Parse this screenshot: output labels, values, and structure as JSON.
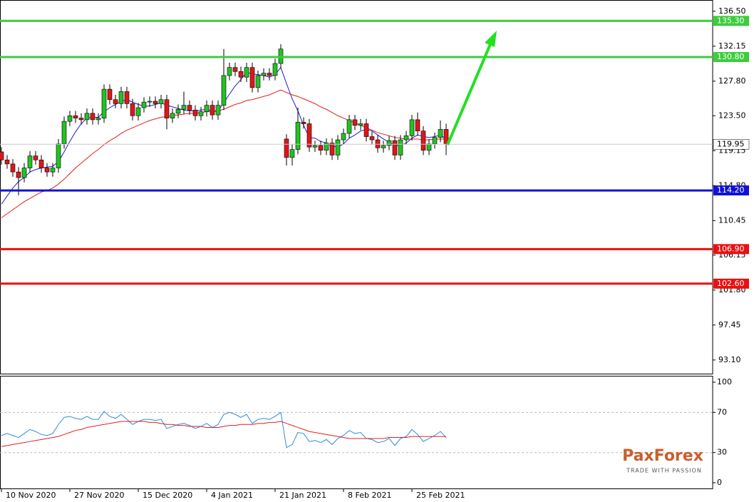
{
  "chart_data": [
    {
      "type": "candlestick",
      "categories": [
        "10 Nov 2020",
        null,
        null,
        null,
        null,
        null,
        null,
        null,
        null,
        null,
        null,
        null,
        "27 Nov 2020",
        null,
        null,
        null,
        null,
        null,
        null,
        null,
        null,
        null,
        null,
        null,
        "15 Dec 2020",
        null,
        null,
        null,
        null,
        null,
        null,
        null,
        null,
        null,
        null,
        null,
        "4 Jan 2021",
        null,
        null,
        null,
        null,
        null,
        null,
        null,
        null,
        null,
        null,
        null,
        "21 Jan 2021",
        null,
        null,
        null,
        null,
        null,
        null,
        null,
        null,
        null,
        null,
        null,
        "8 Feb 2021",
        null,
        null,
        null,
        null,
        null,
        null,
        null,
        null,
        null,
        null,
        null,
        "25 Feb 2021",
        null,
        null,
        null,
        null,
        null,
        null
      ],
      "open": [
        119,
        118,
        117.5,
        116.5,
        115.8,
        117,
        118.5,
        118,
        117,
        116.5,
        117,
        120,
        122.8,
        123.5,
        123.2,
        123,
        123.8,
        123,
        123.2,
        126.8,
        125.5,
        125,
        126.5,
        125,
        123.5,
        124.5,
        125.2,
        125.3,
        125,
        125.5,
        123.2,
        123.8,
        124.3,
        124.8,
        124.2,
        123.5,
        124,
        124.8,
        123.6,
        124.8,
        128.5,
        129.5,
        129,
        128.3,
        129.5,
        127,
        128.5,
        128.8,
        128.5,
        130,
        120.6,
        118.3,
        119.3,
        122.7,
        122.5,
        119.6,
        119.8,
        119.2,
        120.1,
        118.6,
        120.5,
        121.3,
        123,
        122.3,
        122.5,
        120.9,
        120.5,
        119.5,
        119.8,
        120.4,
        118.6,
        120.5,
        121,
        123,
        121.6,
        119.2,
        120,
        120.8,
        121.8
      ],
      "high": [
        119.6,
        118.6,
        118.1,
        117.1,
        117.6,
        119.1,
        119.1,
        118.6,
        117.6,
        117.6,
        120.6,
        123.4,
        124.1,
        124.1,
        123.8,
        124.4,
        124.4,
        123.8,
        127.4,
        127.4,
        126.1,
        127.1,
        127.1,
        125.6,
        125.1,
        125.8,
        125.9,
        125.9,
        126.1,
        126.1,
        124.4,
        124.9,
        126.5,
        125.4,
        124.8,
        124.6,
        125.4,
        125.4,
        125.4,
        131.8,
        130.1,
        130.1,
        129.6,
        130.1,
        130.1,
        129.1,
        129.4,
        129.4,
        130.6,
        132.4,
        121.2,
        119.9,
        124.5,
        123.3,
        123.1,
        120.4,
        120.4,
        120.7,
        120.7,
        121.1,
        121.9,
        123.6,
        123.6,
        123.1,
        123.1,
        121.5,
        121.1,
        120.4,
        121,
        121,
        121.1,
        121.6,
        123.6,
        123.9,
        122.2,
        120.6,
        121.4,
        122.9,
        122.5
      ],
      "low": [
        117.4,
        116.9,
        115.9,
        113.6,
        115.2,
        116.4,
        117.4,
        116.4,
        115.9,
        115.9,
        116.4,
        119.4,
        122.2,
        122.6,
        122.4,
        122.4,
        122.4,
        122.4,
        122.6,
        124.9,
        124.4,
        124.4,
        124.4,
        122.9,
        122.9,
        123.9,
        124.6,
        124.4,
        124.4,
        121.8,
        122.6,
        123.2,
        123.7,
        123.6,
        122.9,
        122.9,
        123.4,
        123,
        123,
        124.2,
        127.9,
        128.4,
        127.7,
        127.7,
        126.4,
        126.4,
        127.9,
        127.9,
        127.9,
        129.4,
        117.3,
        117.3,
        118.7,
        121.9,
        119,
        119,
        118.6,
        118.6,
        118,
        118,
        119.9,
        120.7,
        121.7,
        121.7,
        120.3,
        119.9,
        118.9,
        118.9,
        119.2,
        118,
        118,
        119.9,
        120.4,
        121,
        118.6,
        118.6,
        119.4,
        120.2,
        118.6
      ],
      "close": [
        118,
        117.5,
        116.5,
        115.8,
        117,
        118.5,
        118,
        117,
        116.5,
        117,
        120,
        122.8,
        123.5,
        123.2,
        123,
        123.8,
        123,
        123.2,
        126.8,
        125.5,
        125,
        126.5,
        125,
        123.5,
        124.5,
        125.2,
        125.3,
        125,
        125.5,
        123.2,
        123.8,
        124.3,
        124.8,
        124.2,
        123.5,
        124,
        124.8,
        123.6,
        124.8,
        128.5,
        129.5,
        129,
        128.3,
        129.5,
        127,
        128.5,
        128.8,
        128.5,
        130,
        131.8,
        118.3,
        119.3,
        122.7,
        122.5,
        119.6,
        119.8,
        119.2,
        120.1,
        118.6,
        120.5,
        121.3,
        123,
        122.3,
        122.5,
        120.9,
        120.5,
        119.5,
        119.8,
        120.4,
        118.6,
        120.5,
        121,
        123,
        121.6,
        119.2,
        120,
        120.8,
        121.8,
        119.95
      ],
      "up_color": "#22c322",
      "down_color": "#e0161a",
      "overlays": [
        {
          "color": "#1f1fd0",
          "values": [
            112.5,
            113.5,
            114.5,
            115.3,
            115.8,
            116.5,
            116.8,
            117,
            117.1,
            117.2,
            117.8,
            119,
            120.3,
            121.5,
            122.5,
            123.2,
            123.3,
            123.3,
            124,
            124.5,
            124.9,
            125.3,
            125.5,
            125.2,
            124.9,
            124.7,
            124.7,
            124.9,
            125.1,
            124.8,
            124.6,
            124.4,
            124.2,
            124.1,
            124.1,
            124.2,
            124.3,
            124.1,
            124.1,
            125.1,
            126.2,
            127.2,
            128,
            128.9,
            128.7,
            128.6,
            128.5,
            128.3,
            128.6,
            129.5,
            127.5,
            125.6,
            124.1,
            122.3,
            120.8,
            120.7,
            120.3,
            120.1,
            119.7,
            119.6,
            120,
            120.7,
            121.1,
            121.6,
            121.8,
            121.6,
            121.1,
            120.6,
            120.2,
            119.8,
            119.8,
            120.1,
            120.7,
            121.1,
            120.9,
            120.8,
            120.9,
            121.1,
            120.6
          ]
        },
        {
          "color": "#e02020",
          "values": [
            110.8,
            111.3,
            111.8,
            112.3,
            112.8,
            113.2,
            113.6,
            114,
            114.2,
            114.5,
            115,
            115.6,
            116.3,
            117,
            117.6,
            118.2,
            118.8,
            119.3,
            119.9,
            120.4,
            120.8,
            121.3,
            121.7,
            122,
            122.3,
            122.6,
            122.9,
            123.1,
            123.3,
            123.4,
            123.5,
            123.6,
            123.7,
            123.8,
            123.8,
            123.9,
            124,
            124,
            124.1,
            124.3,
            124.6,
            124.9,
            125.1,
            125.4,
            125.5,
            125.7,
            125.9,
            126.1,
            126.4,
            126.7,
            126.4,
            126.1,
            125.9,
            125.6,
            125.3,
            125,
            124.6,
            124.3,
            123.9,
            123.5,
            123.2,
            122.9,
            122.6,
            122.3,
            122,
            121.7,
            121.4,
            121.2,
            121,
            120.8,
            120.7,
            120.6,
            120.6,
            120.6,
            120.5,
            120.5,
            120.6,
            120.6,
            120.6
          ]
        }
      ],
      "levels": [
        {
          "value": 135.3,
          "label": "135.30",
          "color": "#3ccc3c"
        },
        {
          "value": 130.8,
          "label": "130.80",
          "color": "#3ccc3c"
        },
        {
          "value": 114.2,
          "label": "114.20",
          "color": "#1010d8"
        },
        {
          "value": 106.9,
          "label": "106.90",
          "color": "#e81010"
        },
        {
          "value": 102.6,
          "label": "102.60",
          "color": "#e81010"
        }
      ],
      "last_price": {
        "value": 119.95,
        "label": "119.95"
      },
      "ylim": [
        91.4,
        137.9
      ],
      "yticks": [
        {
          "value": 136.5,
          "label": "136.50"
        },
        132.15,
        {
          "value": 127.8,
          "label": "127.80"
        },
        {
          "value": 123.5,
          "label": "123.50"
        },
        119.15,
        {
          "value": 114.8,
          "label": "114.80"
        },
        110.45,
        106.15,
        {
          "value": 101.8,
          "label": "101.80"
        },
        97.45,
        {
          "value": 93.1,
          "label": "93.10"
        }
      ]
    },
    {
      "type": "line",
      "series": [
        {
          "color": "#2b8ce0",
          "values": [
            47,
            49,
            47,
            45,
            49,
            53,
            51,
            48,
            47,
            49,
            58,
            65,
            66,
            64,
            63,
            66,
            63,
            63,
            71,
            66,
            64,
            68,
            63,
            58,
            61,
            63,
            63,
            62,
            63,
            54,
            56,
            58,
            59,
            57,
            54,
            56,
            59,
            55,
            58,
            68,
            70,
            68,
            65,
            68,
            59,
            63,
            64,
            63,
            66,
            70,
            35,
            38,
            50,
            49,
            41,
            42,
            40,
            43,
            38,
            44,
            47,
            52,
            49,
            50,
            44,
            43,
            40,
            41,
            44,
            37,
            44,
            46,
            53,
            48,
            41,
            44,
            47,
            51,
            45
          ]
        },
        {
          "color": "#e02020",
          "values": [
            36,
            37,
            38,
            39,
            40,
            41,
            42,
            43,
            44,
            45,
            46,
            48,
            50,
            52,
            53,
            55,
            56,
            57,
            58,
            59,
            60,
            61,
            61,
            61,
            61,
            61,
            60,
            60,
            59,
            58,
            58,
            57,
            57,
            56,
            56,
            56,
            55,
            55,
            55,
            56,
            57,
            57,
            58,
            58,
            58,
            59,
            59,
            60,
            60,
            61,
            59,
            57,
            55,
            53,
            51,
            50,
            49,
            48,
            47,
            46,
            45,
            44,
            44,
            44,
            44,
            44,
            44,
            44,
            45,
            45,
            45,
            45,
            46,
            46,
            46,
            46,
            46,
            46,
            46
          ]
        }
      ],
      "levels": [
        70,
        30
      ],
      "ylim": [
        -6.4,
        105.7
      ],
      "yticks": [
        100,
        70,
        30,
        0
      ]
    }
  ],
  "logo": {
    "name": "PaxForex",
    "tagline": "TRADE WITH PASSION"
  }
}
